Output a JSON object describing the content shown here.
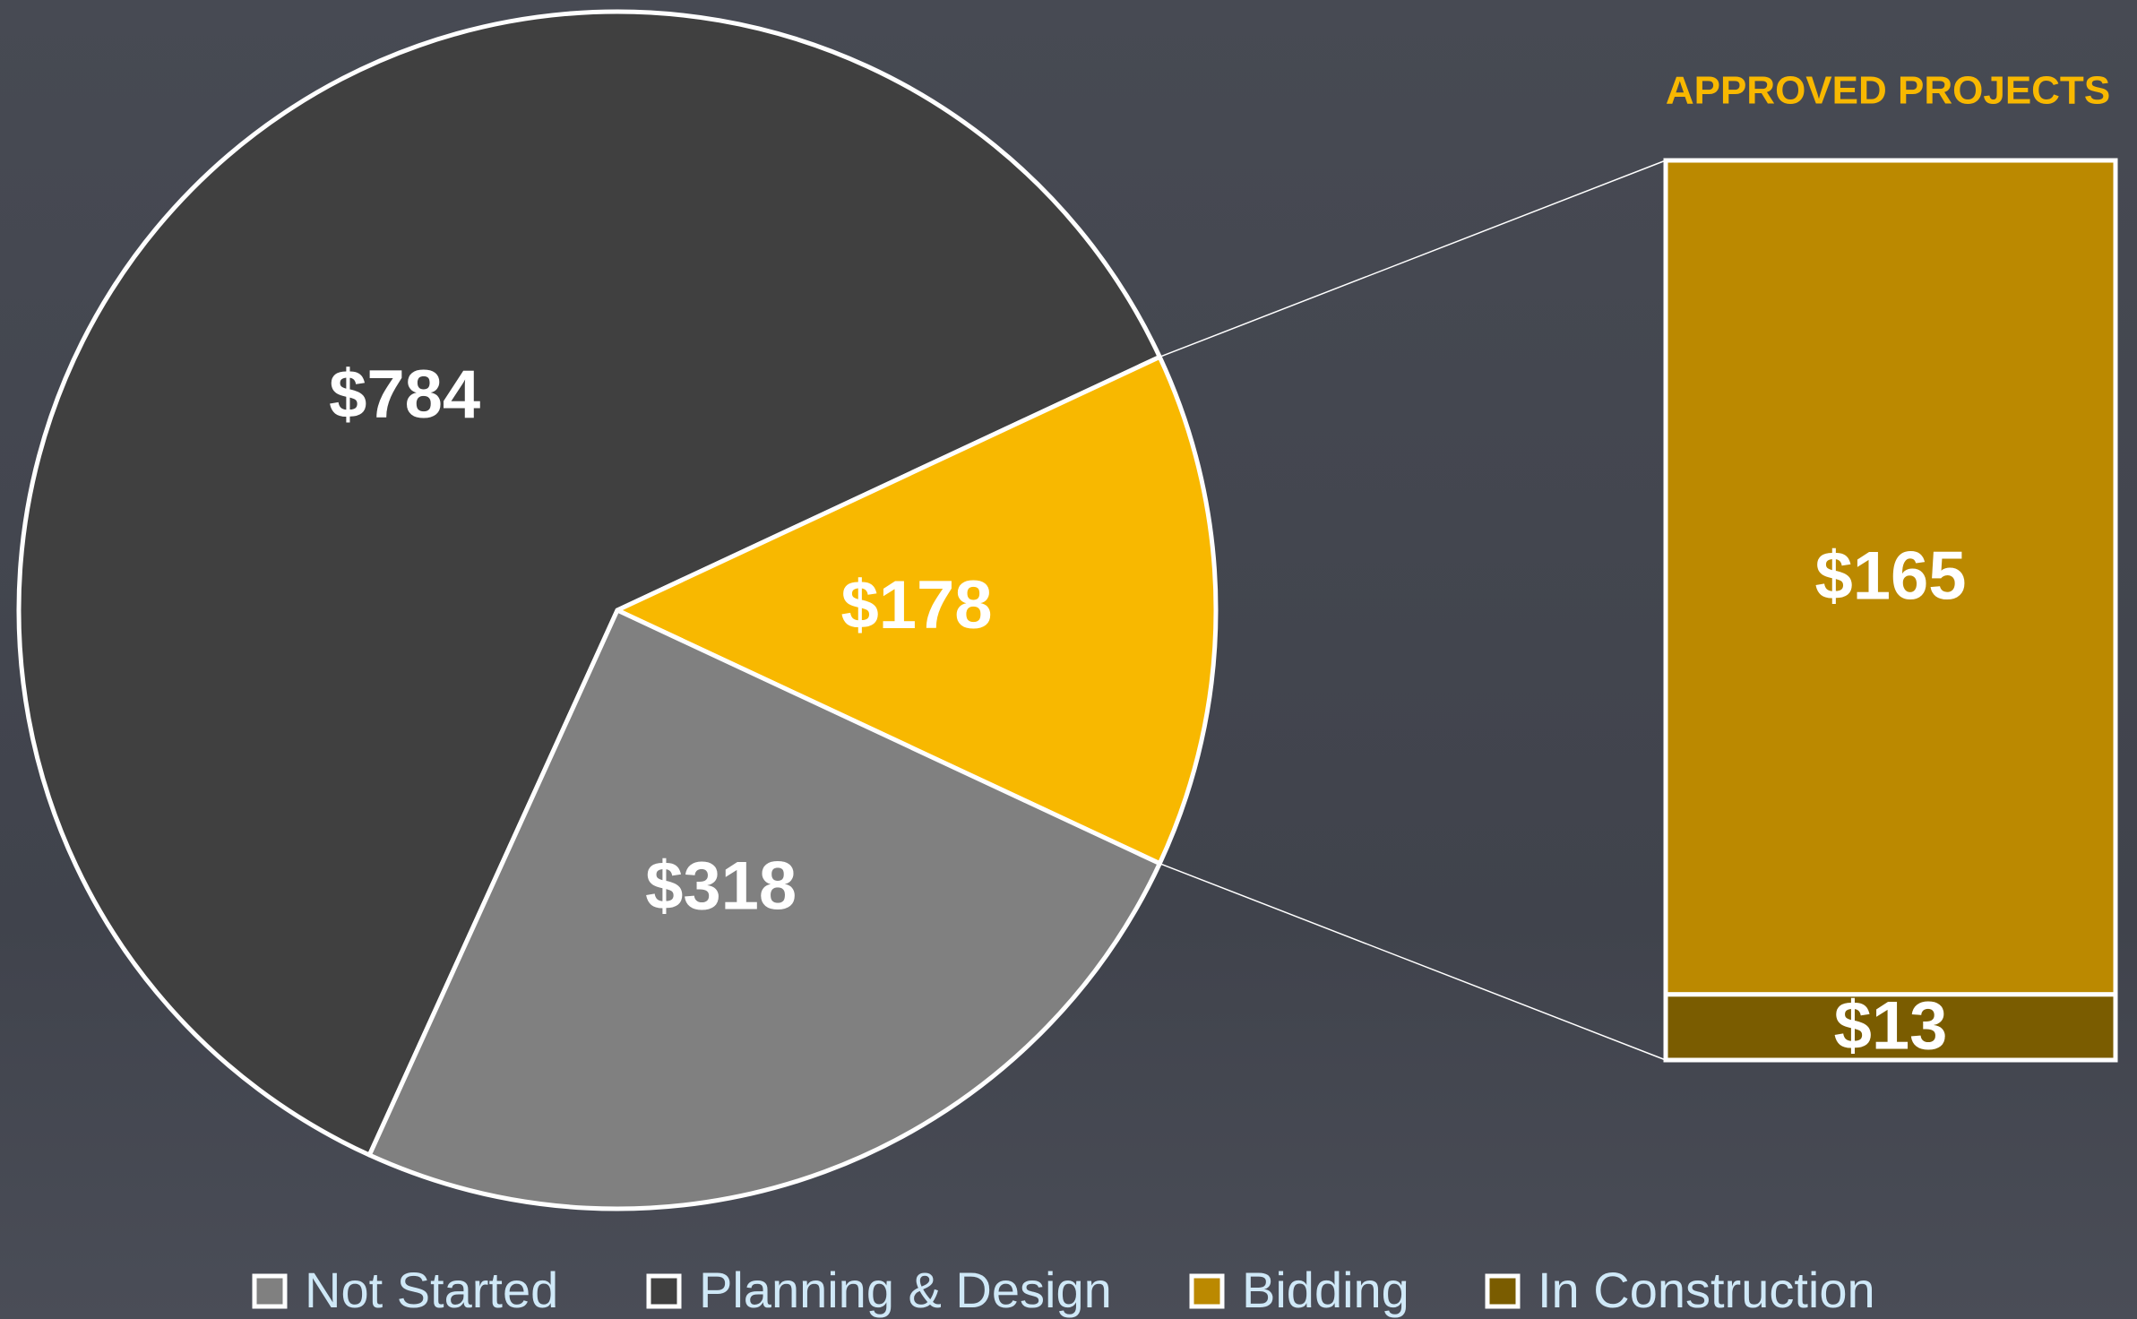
{
  "chart_data": {
    "type": "pie",
    "pie": {
      "values": [
        784,
        178,
        318
      ],
      "value_labels": [
        "$784",
        "$178",
        "$318"
      ],
      "colors": [
        "#404040",
        "#f8b800",
        "#808080"
      ]
    },
    "bar": {
      "title": "APPROVED PROJECTS",
      "values": [
        13,
        165
      ],
      "value_labels": [
        "$13",
        "$165"
      ],
      "colors": [
        "#7a5c00",
        "#bb8900"
      ]
    },
    "legend": [
      {
        "name": "Not Started",
        "color": "#808080"
      },
      {
        "name": "Planning & Design",
        "color": "#404040"
      },
      {
        "name": "Bidding",
        "color": "#bb8900"
      },
      {
        "name": "In Construction",
        "color": "#7a5c00"
      }
    ]
  }
}
